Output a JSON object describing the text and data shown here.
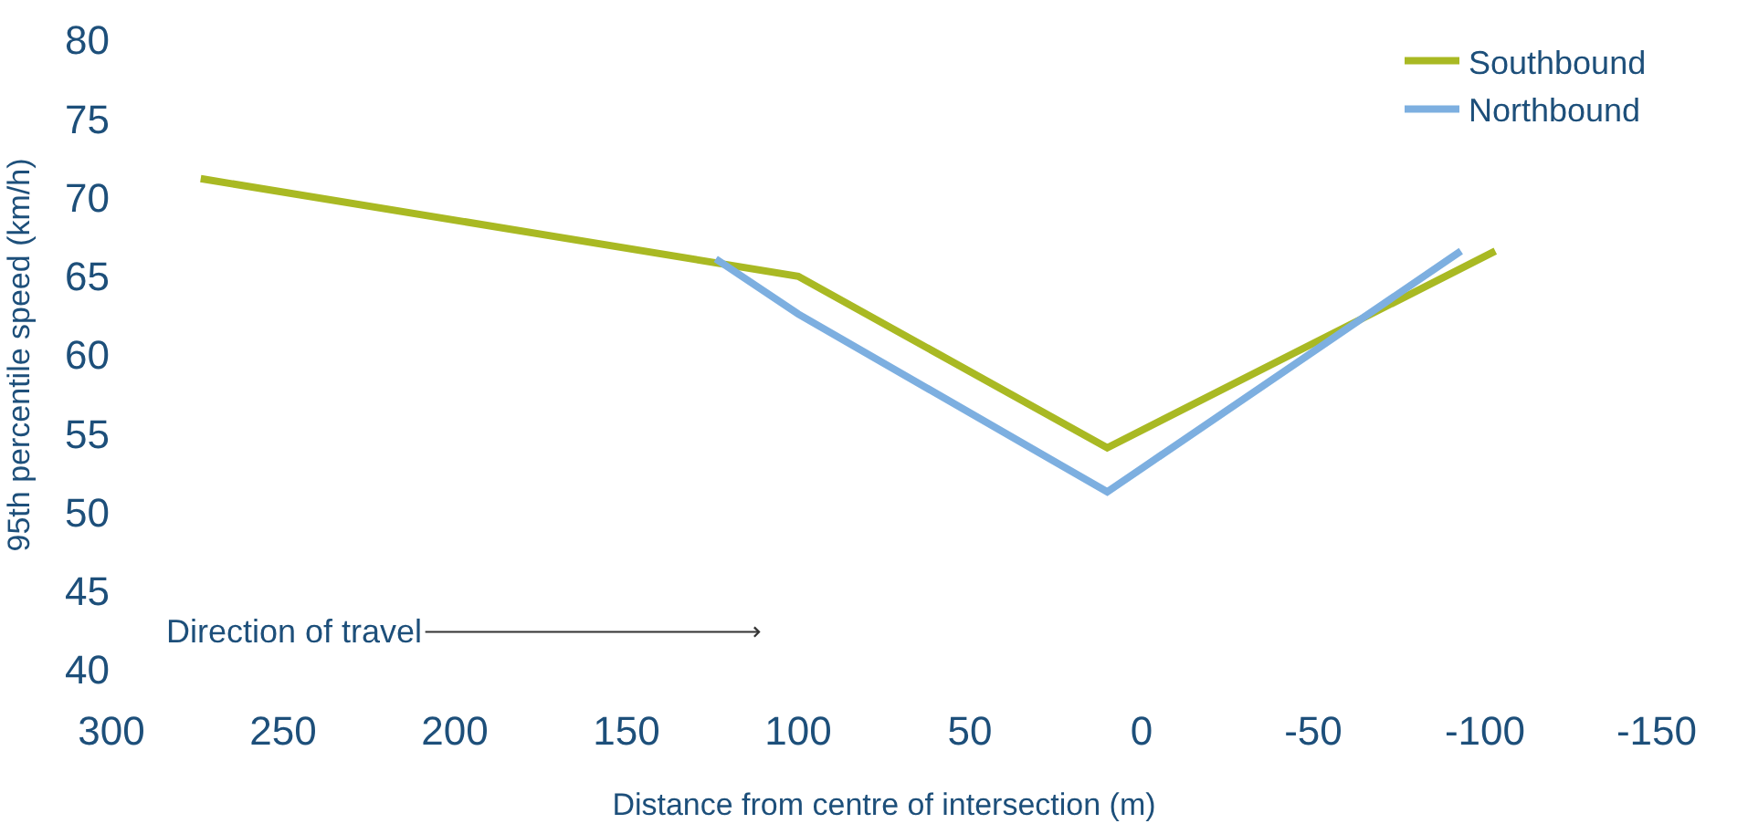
{
  "chart_data": {
    "type": "line",
    "xlabel": "Distance from centre of intersection (m)",
    "ylabel": "95th percentile speed (km/h)",
    "series": [
      {
        "name": "Southbound",
        "color": "#a9b923",
        "x": [
          274,
          100,
          10,
          -103
        ],
        "values": [
          71.2,
          65,
          54.1,
          66.6
        ]
      },
      {
        "name": "Northbound",
        "color": "#7dafe0",
        "x": [
          124,
          100,
          10,
          -93
        ],
        "values": [
          66.1,
          62.6,
          51.3,
          66.6
        ]
      }
    ],
    "xlim": [
      300,
      -150
    ],
    "xticks": [
      300,
      250,
      200,
      150,
      100,
      50,
      0,
      -50,
      -100,
      -150
    ],
    "ylim": [
      40,
      80
    ],
    "yticks": [
      40,
      45,
      50,
      55,
      60,
      65,
      70,
      75,
      80
    ],
    "annotations": [
      "Direction of travel"
    ],
    "legend": "top right",
    "marker": "none",
    "line_style": "solid"
  }
}
